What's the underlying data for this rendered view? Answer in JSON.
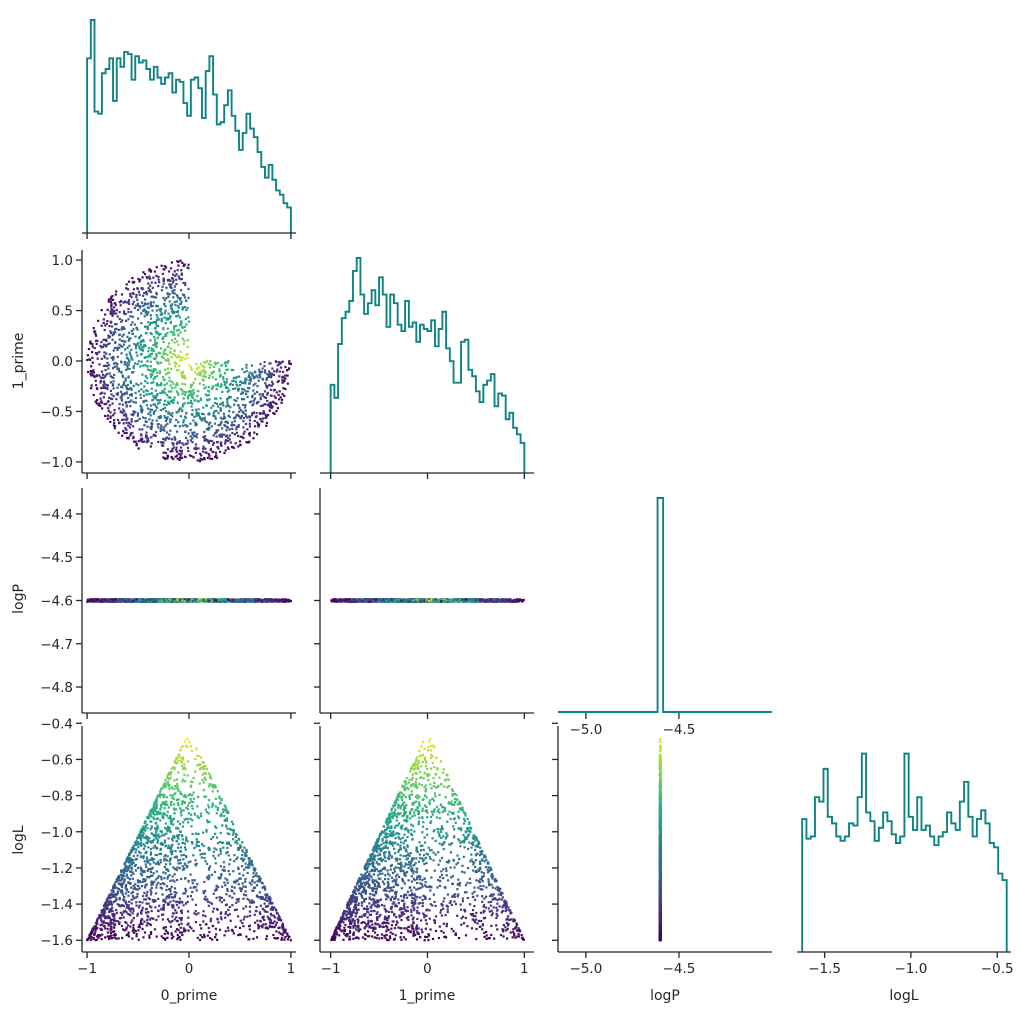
{
  "chart_data": {
    "type": "scatter",
    "variables": [
      "0_prime",
      "1_prime",
      "logP",
      "logL"
    ],
    "axis_labels": {
      "0_prime": "0_prime",
      "1_prime": "1_prime",
      "logP": "logP",
      "logL": "logL"
    },
    "ranges": {
      "0_prime": [
        -1.05,
        1.05
      ],
      "1_prime": [
        -1.11,
        1.1
      ],
      "logP": [
        -4.86,
        -4.34
      ],
      "logL": [
        -1.665,
        -0.415
      ]
    },
    "diag_ranges": {
      "logP": [
        -5.15,
        -4.0
      ],
      "logL": [
        -1.66,
        -0.42
      ]
    },
    "ticks": {
      "0_prime": [
        -1,
        0,
        1
      ],
      "1_prime": [
        -1,
        0,
        1
      ],
      "1_prime_y": [
        -1.0,
        -0.5,
        0.0,
        0.5,
        1.0
      ],
      "logP_y": [
        -4.4,
        -4.5,
        -4.6,
        -4.7,
        -4.8
      ],
      "logP_x": [
        -5.0,
        -4.5
      ],
      "logL_y": [
        -0.4,
        -0.6,
        -0.8,
        -1.0,
        -1.2,
        -1.4,
        -1.6
      ],
      "logL_x": [
        -1.5,
        -1.0,
        -0.5
      ]
    },
    "tick_labels": {
      "0_prime": [
        "−1",
        "0",
        "1"
      ],
      "1_prime": [
        "−1",
        "0",
        "1"
      ],
      "1_prime_y": [
        "−1.0",
        "−0.5",
        "0.0",
        "0.5",
        "1.0"
      ],
      "logP_y": [
        "−4.4",
        "−4.5",
        "−4.6",
        "−4.7",
        "−4.8"
      ],
      "logP_x": [
        "−5.0",
        "−4.5"
      ],
      "logL_y": [
        "−0.4",
        "−0.6",
        "−0.8",
        "−1.0",
        "−1.2",
        "−1.4",
        "−1.6"
      ],
      "logL_x": [
        "−1.5",
        "−1.0",
        "−0.5"
      ]
    },
    "logP_constant": -4.6,
    "hist_color": "#0e8284",
    "colormap": "viridis",
    "color_by": "logL",
    "histograms": {
      "0_prime": {
        "range": [
          -1,
          1
        ],
        "heights": [
          0.82,
          1.0,
          0.57,
          0.56,
          0.75,
          0.77,
          0.82,
          0.62,
          0.82,
          0.78,
          0.85,
          0.84,
          0.72,
          0.83,
          0.8,
          0.81,
          0.77,
          0.72,
          0.78,
          0.73,
          0.7,
          0.73,
          0.75,
          0.66,
          0.72,
          0.71,
          0.61,
          0.55,
          0.72,
          0.73,
          0.68,
          0.54,
          0.76,
          0.83,
          0.65,
          0.51,
          0.52,
          0.6,
          0.67,
          0.55,
          0.48,
          0.39,
          0.47,
          0.56,
          0.49,
          0.45,
          0.38,
          0.31,
          0.26,
          0.32,
          0.25,
          0.2,
          0.18,
          0.14,
          0.12
        ]
      },
      "1_prime": {
        "range": [
          -1,
          1
        ],
        "heights": [
          0.41,
          0.35,
          0.6,
          0.72,
          0.75,
          0.8,
          0.94,
          1.0,
          0.83,
          0.74,
          0.79,
          0.85,
          0.78,
          0.91,
          0.83,
          0.68,
          0.83,
          0.79,
          0.69,
          0.66,
          0.8,
          0.68,
          0.7,
          0.61,
          0.69,
          0.67,
          0.66,
          0.71,
          0.59,
          0.67,
          0.75,
          0.58,
          0.52,
          0.42,
          0.42,
          0.61,
          0.62,
          0.48,
          0.45,
          0.38,
          0.33,
          0.41,
          0.43,
          0.46,
          0.31,
          0.37,
          0.36,
          0.25,
          0.28,
          0.21,
          0.18,
          0.14
        ]
      },
      "logP": {
        "range": [
          -5.15,
          -4.0
        ],
        "bin_edges": [
          -4.615,
          -4.585
        ],
        "heights": [
          1.0
        ]
      },
      "logL": {
        "range": [
          -1.63,
          -0.445
        ],
        "heights": [
          0.61,
          0.52,
          0.53,
          0.71,
          0.69,
          0.84,
          0.62,
          0.59,
          0.53,
          0.51,
          0.53,
          0.59,
          0.58,
          0.71,
          0.91,
          0.64,
          0.6,
          0.51,
          0.57,
          0.64,
          0.6,
          0.54,
          0.5,
          0.53,
          0.91,
          0.62,
          0.56,
          0.71,
          0.56,
          0.58,
          0.53,
          0.49,
          0.53,
          0.55,
          0.64,
          0.59,
          0.56,
          0.69,
          0.78,
          0.62,
          0.53,
          0.61,
          0.65,
          0.59,
          0.5,
          0.48,
          0.36,
          0.33
        ]
      }
    }
  }
}
